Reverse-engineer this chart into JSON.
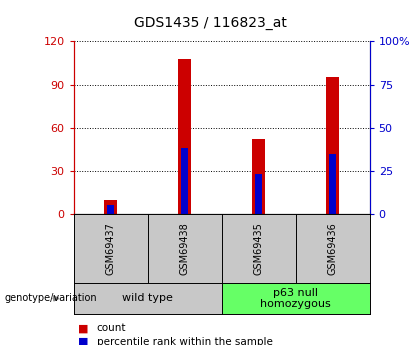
{
  "title": "GDS1435 / 116823_at",
  "samples": [
    "GSM69437",
    "GSM69438",
    "GSM69435",
    "GSM69436"
  ],
  "count_values": [
    10,
    108,
    52,
    95
  ],
  "percentile_values": [
    5,
    38,
    23,
    35
  ],
  "ylim_left": [
    0,
    120
  ],
  "ylim_right": [
    0,
    100
  ],
  "yticks_left": [
    0,
    30,
    60,
    90,
    120
  ],
  "yticks_right": [
    0,
    25,
    50,
    75,
    100
  ],
  "yticklabels_left": [
    "0",
    "30",
    "60",
    "90",
    "120"
  ],
  "yticklabels_right": [
    "0",
    "25",
    "50",
    "75",
    "100%"
  ],
  "bar_color": "#cc0000",
  "percentile_color": "#0000cc",
  "bar_width": 0.18,
  "groups": [
    {
      "label": "wild type",
      "color": "#c8c8c8"
    },
    {
      "label": "p63 null\nhomozygous",
      "color": "#66ff66"
    }
  ],
  "left_axis_color": "#cc0000",
  "right_axis_color": "#0000cc",
  "sample_area_color": "#c8c8c8",
  "genotype_label": "genotype/variation",
  "legend_items": [
    {
      "color": "#cc0000",
      "label": "count"
    },
    {
      "color": "#0000cc",
      "label": "percentile rank within the sample"
    }
  ]
}
